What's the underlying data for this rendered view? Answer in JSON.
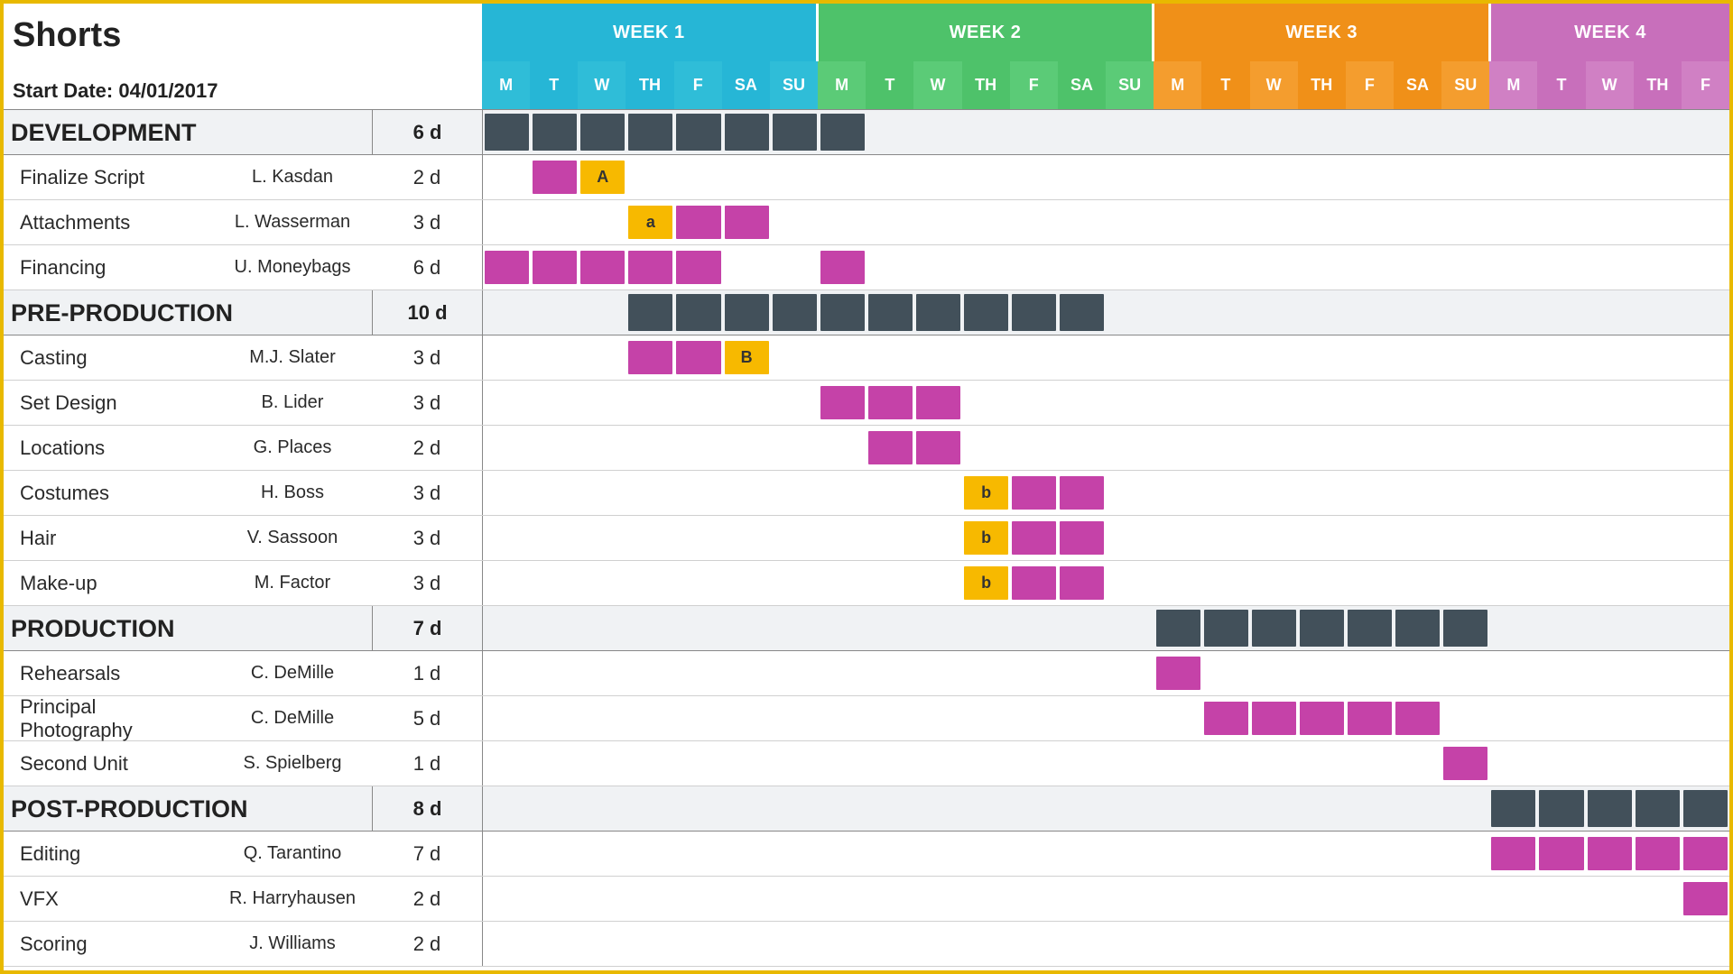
{
  "title": "Shorts",
  "start_label": "Start Date: 04/01/2017",
  "num_days": 26,
  "colors": {
    "phase_bar": "#42505a",
    "task_bar": "#c542a8",
    "dep_bar": "#f7b900",
    "phase_row_bg": "#f0f2f4"
  },
  "weeks": [
    {
      "label": "WEEK 1",
      "bg": "#26b6d6",
      "day_bg_odd": "#2fbdd8",
      "day_bg_even": "#26b6d6",
      "days": [
        "M",
        "T",
        "W",
        "TH",
        "F",
        "SA",
        "SU"
      ]
    },
    {
      "label": "WEEK 2",
      "bg": "#4ec26a",
      "day_bg_odd": "#5bcb77",
      "day_bg_even": "#4ec26a",
      "days": [
        "M",
        "T",
        "W",
        "TH",
        "F",
        "SA",
        "SU"
      ]
    },
    {
      "label": "WEEK 3",
      "bg": "#f09018",
      "day_bg_odd": "#f49d2e",
      "day_bg_even": "#f09018",
      "days": [
        "M",
        "T",
        "W",
        "TH",
        "F",
        "SA",
        "SU"
      ]
    },
    {
      "label": "WEEK 4",
      "bg": "#c86fbb",
      "day_bg_odd": "#d080c4",
      "day_bg_even": "#c86fbb",
      "days": [
        "M",
        "T",
        "W",
        "TH",
        "F"
      ]
    }
  ],
  "rows": [
    {
      "type": "phase",
      "name": "DEVELOPMENT",
      "duration": "6 d",
      "bar": {
        "start": 0,
        "len": 8,
        "color": "phase_bar"
      }
    },
    {
      "type": "task",
      "name": "Finalize Script",
      "person": "L. Kasdan",
      "duration": "2 d",
      "cells": [
        {
          "i": 1,
          "c": "task_bar"
        },
        {
          "i": 2,
          "c": "dep_bar",
          "t": "A"
        }
      ]
    },
    {
      "type": "task",
      "name": "Attachments",
      "person": "L. Wasserman",
      "duration": "3 d",
      "cells": [
        {
          "i": 3,
          "c": "dep_bar",
          "t": "a"
        },
        {
          "i": 4,
          "c": "task_bar"
        },
        {
          "i": 5,
          "c": "task_bar"
        }
      ]
    },
    {
      "type": "task",
      "name": "Financing",
      "person": "U. Moneybags",
      "duration": "6 d",
      "cells": [
        {
          "i": 0,
          "c": "task_bar"
        },
        {
          "i": 1,
          "c": "task_bar"
        },
        {
          "i": 2,
          "c": "task_bar"
        },
        {
          "i": 3,
          "c": "task_bar"
        },
        {
          "i": 4,
          "c": "task_bar"
        },
        {
          "i": 7,
          "c": "task_bar"
        }
      ]
    },
    {
      "type": "phase",
      "name": "PRE-PRODUCTION",
      "duration": "10 d",
      "bar": {
        "start": 3,
        "len": 10,
        "color": "phase_bar"
      }
    },
    {
      "type": "task",
      "name": "Casting",
      "person": "M.J. Slater",
      "duration": "3 d",
      "cells": [
        {
          "i": 3,
          "c": "task_bar"
        },
        {
          "i": 4,
          "c": "task_bar"
        },
        {
          "i": 5,
          "c": "dep_bar",
          "t": "B"
        }
      ]
    },
    {
      "type": "task",
      "name": "Set Design",
      "person": "B. Lider",
      "duration": "3 d",
      "cells": [
        {
          "i": 7,
          "c": "task_bar"
        },
        {
          "i": 8,
          "c": "task_bar"
        },
        {
          "i": 9,
          "c": "task_bar"
        }
      ]
    },
    {
      "type": "task",
      "name": "Locations",
      "person": "G. Places",
      "duration": "2 d",
      "cells": [
        {
          "i": 8,
          "c": "task_bar"
        },
        {
          "i": 9,
          "c": "task_bar"
        }
      ]
    },
    {
      "type": "task",
      "name": "Costumes",
      "person": "H. Boss",
      "duration": "3 d",
      "cells": [
        {
          "i": 10,
          "c": "dep_bar",
          "t": "b"
        },
        {
          "i": 11,
          "c": "task_bar"
        },
        {
          "i": 12,
          "c": "task_bar"
        }
      ]
    },
    {
      "type": "task",
      "name": "Hair",
      "person": "V. Sassoon",
      "duration": "3 d",
      "cells": [
        {
          "i": 10,
          "c": "dep_bar",
          "t": "b"
        },
        {
          "i": 11,
          "c": "task_bar"
        },
        {
          "i": 12,
          "c": "task_bar"
        }
      ]
    },
    {
      "type": "task",
      "name": "Make-up",
      "person": "M. Factor",
      "duration": "3 d",
      "cells": [
        {
          "i": 10,
          "c": "dep_bar",
          "t": "b"
        },
        {
          "i": 11,
          "c": "task_bar"
        },
        {
          "i": 12,
          "c": "task_bar"
        }
      ]
    },
    {
      "type": "phase",
      "name": "PRODUCTION",
      "duration": "7 d",
      "bar": {
        "start": 14,
        "len": 7,
        "color": "phase_bar"
      }
    },
    {
      "type": "task",
      "name": "Rehearsals",
      "person": "C. DeMille",
      "duration": "1 d",
      "cells": [
        {
          "i": 14,
          "c": "task_bar"
        }
      ]
    },
    {
      "type": "task",
      "name": "Principal Photography",
      "person": "C. DeMille",
      "duration": "5 d",
      "cells": [
        {
          "i": 15,
          "c": "task_bar"
        },
        {
          "i": 16,
          "c": "task_bar"
        },
        {
          "i": 17,
          "c": "task_bar"
        },
        {
          "i": 18,
          "c": "task_bar"
        },
        {
          "i": 19,
          "c": "task_bar"
        }
      ]
    },
    {
      "type": "task",
      "name": "Second Unit",
      "person": "S. Spielberg",
      "duration": "1 d",
      "cells": [
        {
          "i": 20,
          "c": "task_bar"
        }
      ]
    },
    {
      "type": "phase",
      "name": "POST-PRODUCTION",
      "duration": "8 d",
      "bar": {
        "start": 21,
        "len": 5,
        "color": "phase_bar"
      }
    },
    {
      "type": "task",
      "name": "Editing",
      "person": "Q. Tarantino",
      "duration": "7 d",
      "cells": [
        {
          "i": 21,
          "c": "task_bar"
        },
        {
          "i": 22,
          "c": "task_bar"
        },
        {
          "i": 23,
          "c": "task_bar"
        },
        {
          "i": 24,
          "c": "task_bar"
        },
        {
          "i": 25,
          "c": "task_bar"
        }
      ]
    },
    {
      "type": "task",
      "name": "VFX",
      "person": "R. Harryhausen",
      "duration": "2 d",
      "cells": [
        {
          "i": 25,
          "c": "task_bar"
        }
      ]
    },
    {
      "type": "task",
      "name": "Scoring",
      "person": "J. Williams",
      "duration": "2 d",
      "cells": []
    }
  ]
}
